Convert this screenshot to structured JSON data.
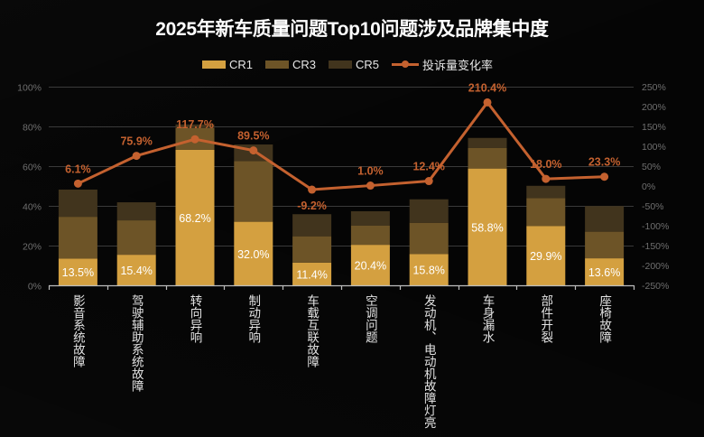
{
  "title": "2025年新车质量问题Top10问题涉及品牌集中度",
  "legend": [
    {
      "label": "CR1",
      "color": "#d4a040",
      "kind": "bar"
    },
    {
      "label": "CR3",
      "color": "#6d5427",
      "kind": "bar"
    },
    {
      "label": "CR5",
      "color": "#41341d",
      "kind": "bar"
    },
    {
      "label": "投诉量变化率",
      "color": "#c4612f",
      "kind": "line"
    }
  ],
  "chart_data": {
    "type": "bar",
    "subtype": "stacked-bar-with-line",
    "title": "2025年新车质量问题Top10问题涉及品牌集中度",
    "xlabel": "",
    "ylabel": "",
    "y2label": "",
    "ylim": [
      0,
      100
    ],
    "y2lim": [
      -250,
      250
    ],
    "yticks": [
      "0%",
      "20%",
      "40%",
      "60%",
      "80%",
      "100%"
    ],
    "y2ticks": [
      "-250%",
      "-200%",
      "-150%",
      "-100%",
      "-50%",
      "0%",
      "50%",
      "100%",
      "150%",
      "200%",
      "250%"
    ],
    "grid": true,
    "legend_position": "top",
    "categories": [
      "影音系统故障",
      "驾驶辅助系统故障",
      "转向异响",
      "制动异响",
      "车载互联故障",
      "空调问题",
      "发动机、电动机故障灯亮",
      "车身漏水",
      "部件开裂",
      "座椅故障"
    ],
    "series": [
      {
        "name": "CR1",
        "axis": "left",
        "color": "#d4a040",
        "values": [
          13.5,
          15.4,
          68.2,
          32.0,
          11.4,
          20.4,
          15.8,
          58.8,
          29.9,
          13.6
        ]
      },
      {
        "name": "CR3",
        "axis": "left",
        "color": "#6d5427",
        "values": [
          34.5,
          32.7,
          79.2,
          62.6,
          24.7,
          30.0,
          31.5,
          69.1,
          43.9,
          27.0
        ]
      },
      {
        "name": "CR5",
        "axis": "left",
        "color": "#41341d",
        "values": [
          48.2,
          41.8,
          81.0,
          70.9,
          35.8,
          37.3,
          43.3,
          74.2,
          50.1,
          39.9
        ]
      },
      {
        "name": "投诉量变化率",
        "axis": "right",
        "type": "line",
        "color": "#c4612f",
        "values": [
          6.1,
          75.9,
          117.7,
          89.5,
          -9.2,
          1.0,
          12.4,
          210.4,
          18.0,
          23.3
        ]
      }
    ],
    "bar_labels": [
      "13.5%",
      "15.4%",
      "68.2%",
      "32.0%",
      "11.4%",
      "20.4%",
      "15.8%",
      "58.8%",
      "29.9%",
      "13.6%"
    ],
    "line_labels": [
      "6.1%",
      "75.9%",
      "117.7%",
      "89.5%",
      "-9.2%",
      "1.0%",
      "12.4%",
      "210.4%",
      "18.0%",
      "23.3%"
    ]
  }
}
